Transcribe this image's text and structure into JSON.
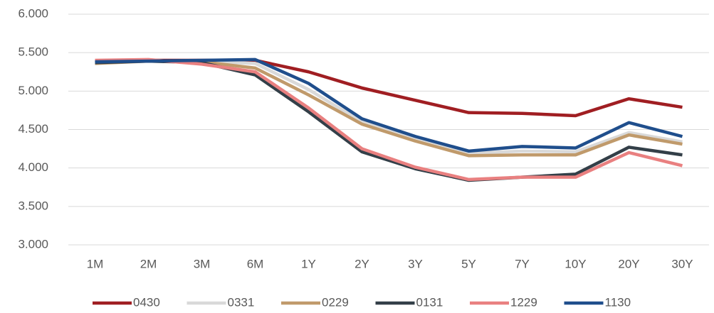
{
  "chart_data": {
    "type": "line",
    "categories": [
      "1M",
      "2M",
      "3M",
      "6M",
      "1Y",
      "2Y",
      "3Y",
      "5Y",
      "7Y",
      "10Y",
      "20Y",
      "30Y"
    ],
    "series": [
      {
        "name": "0430",
        "color": "#a01e22",
        "values": [
          5.38,
          5.4,
          5.4,
          5.4,
          5.25,
          5.04,
          4.88,
          4.72,
          4.71,
          4.68,
          4.9,
          4.79
        ]
      },
      {
        "name": "0331",
        "color": "#d9d9d9",
        "values": [
          5.37,
          5.39,
          5.39,
          5.36,
          5.02,
          4.6,
          4.38,
          4.19,
          4.22,
          4.21,
          4.46,
          4.34
        ]
      },
      {
        "name": "0229",
        "color": "#c09a6b",
        "values": [
          5.36,
          5.39,
          5.38,
          5.3,
          4.95,
          4.57,
          4.35,
          4.16,
          4.17,
          4.17,
          4.43,
          4.31
        ]
      },
      {
        "name": "0131",
        "color": "#333f48",
        "values": [
          5.37,
          5.39,
          5.37,
          5.21,
          4.73,
          4.21,
          3.99,
          3.84,
          3.88,
          3.92,
          4.27,
          4.17
        ]
      },
      {
        "name": "1229",
        "color": "#e98080",
        "values": [
          5.4,
          5.41,
          5.35,
          5.25,
          4.78,
          4.25,
          4.01,
          3.85,
          3.88,
          3.88,
          4.2,
          4.03
        ]
      },
      {
        "name": "1130",
        "color": "#1f4e8c",
        "values": [
          5.38,
          5.39,
          5.4,
          5.41,
          5.1,
          4.64,
          4.41,
          4.22,
          4.28,
          4.26,
          4.59,
          4.41
        ]
      }
    ],
    "ylim": [
      3,
      6
    ],
    "yticks": [
      {
        "value": 3,
        "label": "3.000"
      },
      {
        "value": 3.5,
        "label": "3.500"
      },
      {
        "value": 4,
        "label": "4.000"
      },
      {
        "value": 4.5,
        "label": "4.500"
      },
      {
        "value": 5,
        "label": "5.000"
      },
      {
        "value": 5.5,
        "label": "5.500"
      },
      {
        "value": 6,
        "label": "6.000"
      }
    ],
    "grid": true,
    "legend": "bottom"
  }
}
